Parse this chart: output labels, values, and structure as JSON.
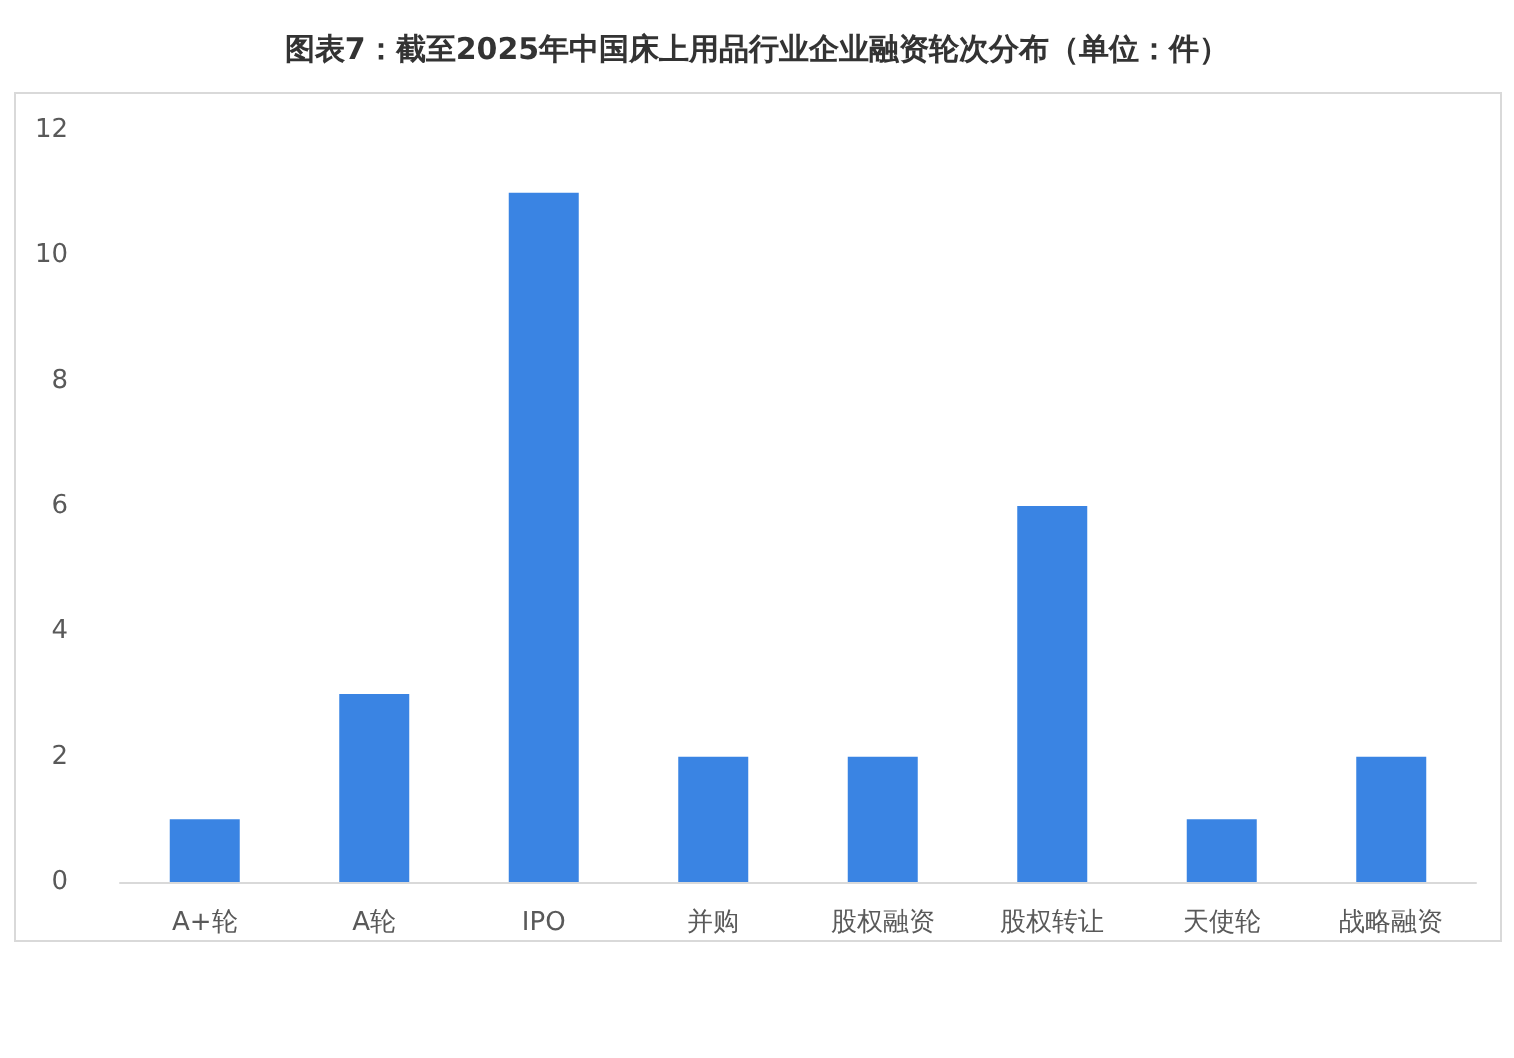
{
  "chart_data": {
    "type": "bar",
    "title": "图表7：截至2025年中国床上用品行业企业融资轮次分布（单位：件）",
    "categories": [
      "A+轮",
      "A轮",
      "IPO",
      "并购",
      "股权融资",
      "股权转让",
      "天使轮",
      "战略融资"
    ],
    "values": [
      1,
      3,
      11,
      2,
      2,
      6,
      1,
      2
    ],
    "color": "#3a84e3",
    "ylim": [
      0,
      12
    ],
    "yticks": [
      0,
      2,
      4,
      6,
      8,
      10,
      12
    ]
  }
}
